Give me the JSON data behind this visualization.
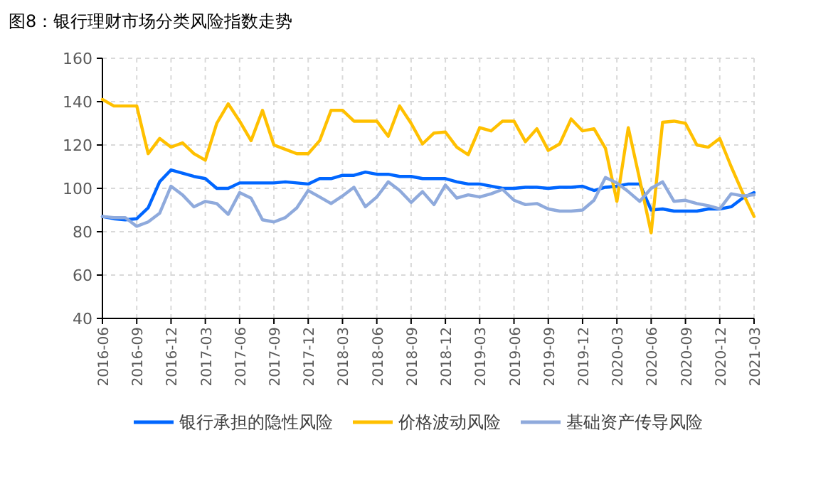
{
  "chart_data": {
    "type": "line",
    "title": "图8：银行理财市场分类风险指数走势",
    "x": [
      "2016-06",
      "2016-07",
      "2016-08",
      "2016-09",
      "2016-10",
      "2016-11",
      "2016-12",
      "2017-01",
      "2017-02",
      "2017-03",
      "2017-04",
      "2017-05",
      "2017-06",
      "2017-07",
      "2017-08",
      "2017-09",
      "2017-10",
      "2017-11",
      "2017-12",
      "2018-01",
      "2018-02",
      "2018-03",
      "2018-04",
      "2018-05",
      "2018-06",
      "2018-07",
      "2018-08",
      "2018-09",
      "2018-10",
      "2018-11",
      "2018-12",
      "2019-01",
      "2019-02",
      "2019-03",
      "2019-04",
      "2019-05",
      "2019-06",
      "2019-07",
      "2019-08",
      "2019-09",
      "2019-10",
      "2019-11",
      "2019-12",
      "2020-01",
      "2020-02",
      "2020-03",
      "2020-04",
      "2020-05",
      "2020-06",
      "2020-07",
      "2020-08",
      "2020-09",
      "2020-10",
      "2020-11",
      "2020-12",
      "2021-01",
      "2021-02",
      "2021-03"
    ],
    "series": [
      {
        "name": "银行承担的隐性风险",
        "color": "#0066ff",
        "values": [
          87,
          86,
          85.5,
          86,
          91,
          103,
          108.5,
          107,
          105.5,
          104.5,
          100,
          100,
          102.5,
          102.5,
          102.5,
          102.5,
          103,
          102.5,
          102,
          104.5,
          104.5,
          106,
          106,
          107.5,
          106.5,
          106.5,
          105.5,
          105.5,
          104.5,
          104.5,
          104.5,
          103,
          102,
          102,
          101,
          100,
          100,
          100.5,
          100.5,
          100,
          100.5,
          100.5,
          101,
          99,
          100.5,
          101,
          102,
          102,
          90,
          90.5,
          89.5,
          89.5,
          89.5,
          90.5,
          90.5,
          91.5,
          95.5,
          98
        ]
      },
      {
        "name": "价格波动风险",
        "color": "#ffc000",
        "values": [
          141,
          138,
          138,
          138,
          116,
          123,
          119,
          121,
          116,
          113,
          130,
          139,
          131,
          122,
          136,
          120,
          118,
          116,
          116,
          122,
          136,
          136,
          131,
          131,
          131,
          124,
          138,
          130,
          120.5,
          125.5,
          126,
          119,
          115.5,
          128,
          126.5,
          131,
          131,
          121.5,
          127.5,
          117.5,
          120.5,
          132,
          126.5,
          127.5,
          118.5,
          94,
          128,
          104,
          79.5,
          130.5,
          131,
          130,
          120,
          119,
          123,
          110,
          98,
          87
        ]
      },
      {
        "name": "基础资产传导风险",
        "color": "#8faadc",
        "values": [
          87,
          86.5,
          86.5,
          82.5,
          84.5,
          88.5,
          101,
          97,
          91.5,
          94,
          93,
          88,
          98,
          95.5,
          85.5,
          84.5,
          86.5,
          91,
          99,
          96,
          93,
          96.5,
          100.5,
          91.5,
          96,
          103,
          99,
          93.5,
          98.5,
          92.5,
          101.5,
          95.5,
          97,
          96,
          97.5,
          99.5,
          94.5,
          92.5,
          93,
          90.5,
          89.5,
          89.5,
          90,
          94.5,
          105,
          102.5,
          98.5,
          94,
          100,
          103,
          94,
          94.5,
          93,
          92,
          90.5,
          97.5,
          96.5,
          97
        ]
      }
    ],
    "xlim": [
      "2016-06",
      "2021-03"
    ],
    "xticks": [
      "2016-06",
      "2016-09",
      "2016-12",
      "2017-03",
      "2017-06",
      "2017-09",
      "2017-12",
      "2018-03",
      "2018-06",
      "2018-09",
      "2018-12",
      "2019-03",
      "2019-06",
      "2019-09",
      "2019-12",
      "2020-03",
      "2020-06",
      "2020-09",
      "2020-12",
      "2021-03"
    ],
    "ylim": [
      40,
      160
    ],
    "yticks": [
      40,
      60,
      80,
      100,
      120,
      140,
      160
    ],
    "grid": true,
    "legend": "bottom",
    "marker": "none",
    "line_style": "solid"
  }
}
